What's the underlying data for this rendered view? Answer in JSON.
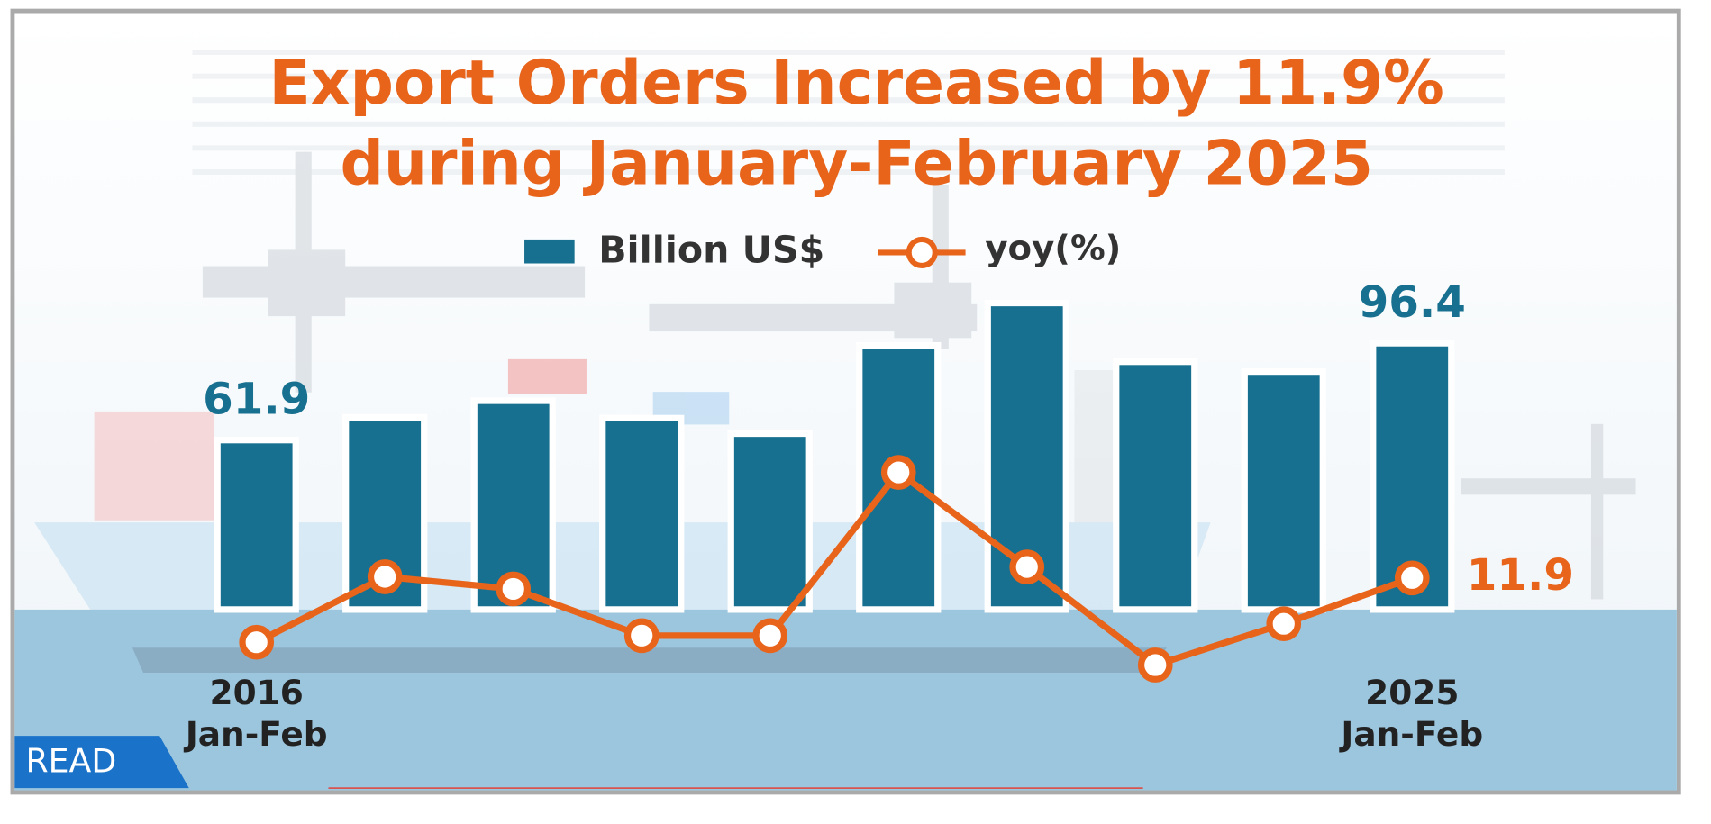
{
  "chart_data": {
    "type": "bar-line",
    "title": "Export Orders Increased by 11.9%\nduring January-February 2025",
    "categories": [
      "2016\nJan-Feb",
      null,
      null,
      null,
      null,
      null,
      null,
      null,
      null,
      "2025\nJan-Feb"
    ],
    "series": [
      {
        "name": "Billion US$",
        "type": "bar",
        "color": "#17708f",
        "values": [
          61.9,
          70.0,
          75.9,
          69.7,
          64.2,
          95.6,
          110.7,
          89.8,
          86.3,
          96.4
        ]
      },
      {
        "name": "yoy(%)",
        "type": "line",
        "color": "#e8641b",
        "values": [
          -10.4,
          12.3,
          8.1,
          -8.1,
          -8.1,
          48.5,
          15.7,
          -18.3,
          -4.0,
          11.9
        ]
      }
    ],
    "button_label": "READ"
  }
}
